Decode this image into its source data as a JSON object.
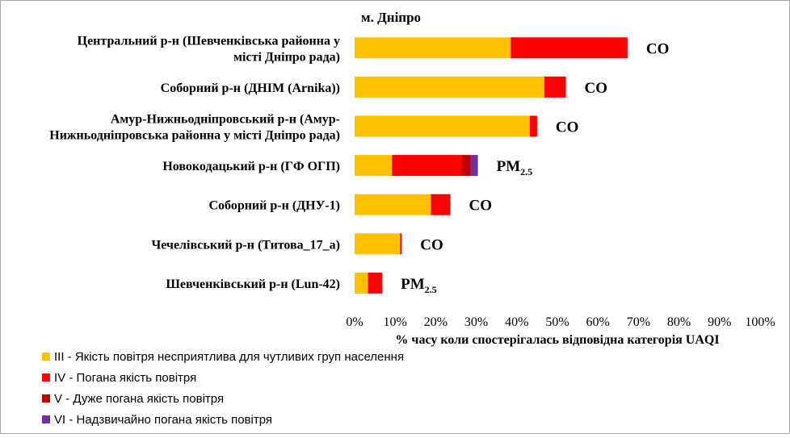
{
  "chart_data": {
    "type": "bar",
    "orientation": "horizontal",
    "stacked": true,
    "title": "м. Дніпро",
    "xlabel": "% часу коли спостерігалась відповідна категорія UAQI",
    "ylabel": "",
    "xlim": [
      0,
      100
    ],
    "x_ticks": [
      "0%",
      "10%",
      "20%",
      "30%",
      "40%",
      "50%",
      "60%",
      "70%",
      "80%",
      "90%",
      "100%"
    ],
    "grid": false,
    "legend_position": "bottom-left",
    "categories": [
      [
        "Центральний р-н (Шевченківська районна у",
        "місті Дніпро рада)"
      ],
      [
        "Соборний р-н (ДНІМ (Arnika))"
      ],
      [
        "Амур-Нижньодніпровський р-н (Амур-",
        "Нижньодніпровська районна у місті Дніпро рада)"
      ],
      [
        "Новокодацький р-н (ГФ ОГП)"
      ],
      [
        "Соборний р-н (ДНУ-1)"
      ],
      [
        "Чечелівський р-н (Титова_17_а)"
      ],
      [
        "Шевченківський р-н (Lun-42)"
      ]
    ],
    "dominant_pollutant": [
      {
        "main": "CO",
        "sub": ""
      },
      {
        "main": "CO",
        "sub": ""
      },
      {
        "main": "CO",
        "sub": ""
      },
      {
        "main": "PM",
        "sub": "2.5"
      },
      {
        "main": "CO",
        "sub": ""
      },
      {
        "main": "CO",
        "sub": ""
      },
      {
        "main": "PM",
        "sub": "2.5"
      }
    ],
    "series": [
      {
        "name": "III - Якість повітря несприятлива для чутливих груп населення",
        "color": "#FFC000",
        "values": [
          38.5,
          46.8,
          43.2,
          9.2,
          18.8,
          11.2,
          3.3
        ]
      },
      {
        "name": "IV - Погана якість повітря",
        "color": "#FF0000",
        "values": [
          28.8,
          5.3,
          1.8,
          17.2,
          4.8,
          0.4,
          3.5
        ]
      },
      {
        "name": "V - Дуже погана якість повітря",
        "color": "#C00000",
        "values": [
          0,
          0,
          0,
          2.2,
          0,
          0,
          0
        ]
      },
      {
        "name": "VI - Надзвичайно погана якість повітря",
        "color": "#7030A0",
        "values": [
          0,
          0,
          0,
          1.8,
          0,
          0,
          0
        ]
      }
    ]
  }
}
